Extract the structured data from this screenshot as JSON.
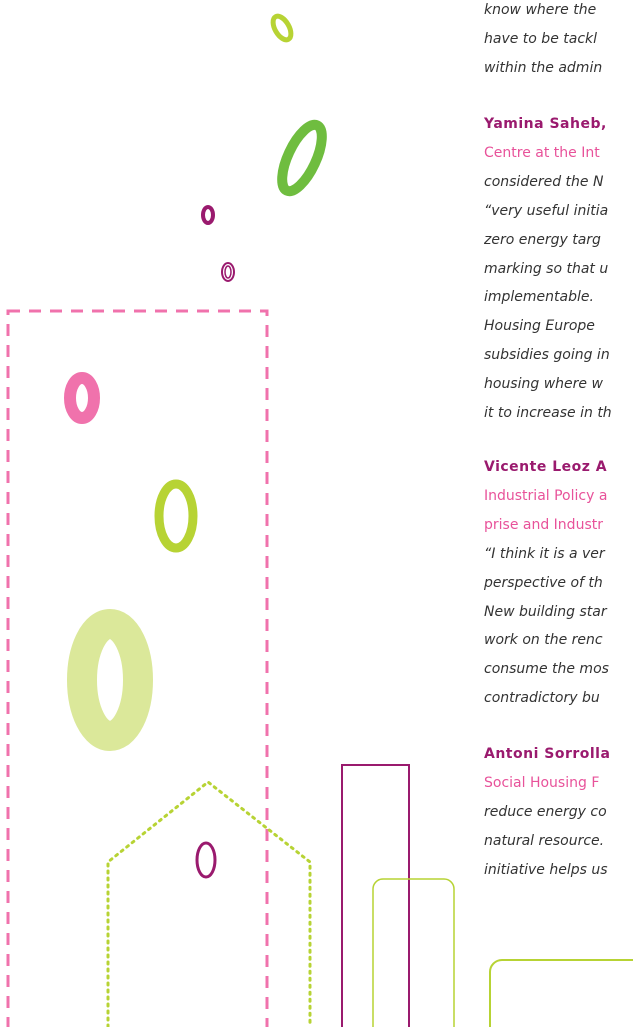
{
  "intro": [
    "know where the",
    "have to be tackl",
    "within the admin"
  ],
  "people": [
    {
      "name": "Yamina Saheb,",
      "lines": [
        "Centre at the Int",
        "considered the N",
        "“very useful initia",
        "zero energy targ",
        "marking so that u",
        "implementable.",
        "Housing Europe",
        "subsidies going in",
        "housing where w",
        "it to increase in th"
      ]
    },
    {
      "name": "Vicente Leoz A",
      "lines": [
        "Industrial Policy a",
        "prise and Industr",
        "“I think it is a ver",
        "perspective of th",
        "New building star",
        "work on the renc",
        "consume the mos",
        "contradictory bu"
      ]
    },
    {
      "name": "Antoni Sorrolla",
      "lines": [
        "Social Housing F",
        "reduce energy co",
        "natural resource.",
        "initiative helps us"
      ]
    }
  ]
}
